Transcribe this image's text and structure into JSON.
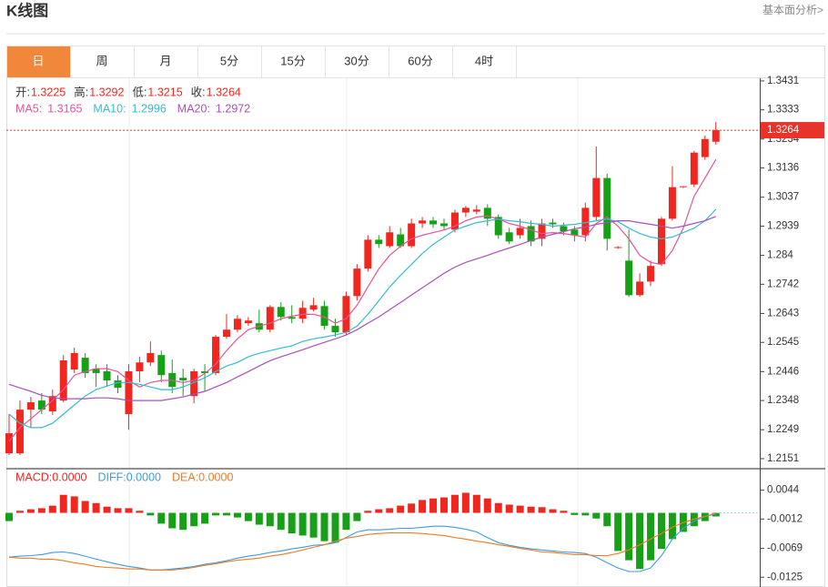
{
  "header": {
    "title": "K线图",
    "link": "基本面分析>"
  },
  "tabs": {
    "items": [
      "日",
      "周",
      "月",
      "5分",
      "15分",
      "30分",
      "60分",
      "4时"
    ],
    "active": 0
  },
  "chart_data": [
    {
      "type": "candlestick",
      "labels": {
        "open": "开:",
        "high": "高:",
        "low": "低:",
        "close": "收:"
      },
      "up_color": "#f0261f",
      "down_color": "#16a016",
      "open": [
        1.2169,
        1.2169,
        1.2317,
        1.2348,
        1.2311,
        1.2348,
        1.2453,
        1.2493,
        1.2456,
        1.2447,
        1.2416,
        1.2302,
        1.2447,
        1.2477,
        1.2502,
        1.2441,
        1.2425,
        1.2363,
        1.2447,
        1.2441,
        1.2564,
        1.2588,
        1.261,
        1.261,
        1.2588,
        1.2665,
        1.2631,
        1.2625,
        1.2656,
        1.2668,
        1.2601,
        1.2579,
        1.2702,
        1.2795,
        1.2893,
        1.2871,
        1.2911,
        1.2871,
        1.2948,
        1.2958,
        1.2948,
        1.2927,
        1.2985,
        1.2988,
        1.3001,
        1.297,
        1.2918,
        1.2908,
        1.2939,
        1.2896,
        1.2951,
        1.2939,
        1.2927,
        1.2908,
        1.297,
        1.3102,
        1.2865,
        1.2822,
        1.2705,
        1.2751,
        1.281,
        1.2964,
        1.3071,
        1.308,
        1.3173,
        1.3225
      ],
      "high": [
        1.2302,
        1.2348,
        1.236,
        1.2373,
        1.2385,
        1.2502,
        1.2527,
        1.2509,
        1.2471,
        1.2471,
        1.2434,
        1.2471,
        1.2496,
        1.2548,
        1.2517,
        1.2487,
        1.2456,
        1.2456,
        1.2471,
        1.257,
        1.2641,
        1.2637,
        1.2631,
        1.2656,
        1.2671,
        1.2681,
        1.2671,
        1.2686,
        1.2696,
        1.2686,
        1.2625,
        1.2717,
        1.281,
        1.2908,
        1.2908,
        1.2939,
        1.2933,
        1.2964,
        1.297,
        1.297,
        1.2964,
        1.2995,
        1.3007,
        1.301,
        1.3013,
        1.2979,
        1.2933,
        1.2964,
        1.2958,
        1.2964,
        1.2964,
        1.2951,
        1.2939,
        1.3019,
        1.3209,
        1.3117,
        1.2871,
        1.2927,
        1.2779,
        1.2822,
        1.297,
        1.3142,
        1.3074,
        1.3194,
        1.3246,
        1.3292
      ],
      "low": [
        1.2163,
        1.2163,
        1.2255,
        1.2302,
        1.2299,
        1.2342,
        1.2441,
        1.2425,
        1.2394,
        1.2394,
        1.2373,
        1.2249,
        1.241,
        1.2465,
        1.241,
        1.2373,
        1.2363,
        1.2339,
        1.2379,
        1.2434,
        1.2557,
        1.2579,
        1.2601,
        1.2579,
        1.2579,
        1.2619,
        1.261,
        1.261,
        1.265,
        1.2588,
        1.2564,
        1.257,
        1.2687,
        1.2785,
        1.2865,
        1.2865,
        1.2865,
        1.2865,
        1.2933,
        1.2933,
        1.2927,
        1.2918,
        1.297,
        1.2979,
        1.2939,
        1.2896,
        1.2878,
        1.2896,
        1.2871,
        1.2871,
        1.2933,
        1.2908,
        1.2887,
        1.2887,
        1.2958,
        1.2856,
        1.2862,
        1.2699,
        1.2699,
        1.2736,
        1.2804,
        1.2958,
        1.3068,
        1.3071,
        1.3164,
        1.3215
      ],
      "close": [
        1.2237,
        1.2317,
        1.2342,
        1.2317,
        1.2363,
        1.2484,
        1.2509,
        1.2441,
        1.2441,
        1.2416,
        1.2391,
        1.2447,
        1.2477,
        1.2509,
        1.2434,
        1.2394,
        1.2416,
        1.2447,
        1.2441,
        1.2564,
        1.2588,
        1.2625,
        1.2619,
        1.2588,
        1.2665,
        1.2631,
        1.2625,
        1.2662,
        1.2671,
        1.2601,
        1.2579,
        1.2702,
        1.2795,
        1.2893,
        1.2878,
        1.2918,
        1.2871,
        1.2948,
        1.2958,
        1.2945,
        1.2939,
        1.2985,
        1.3001,
        1.2995,
        1.2964,
        1.2908,
        1.2887,
        1.2933,
        1.2887,
        1.2948,
        1.2945,
        1.2921,
        1.2908,
        1.3001,
        1.3102,
        1.2896,
        1.2868,
        1.2705,
        1.2751,
        1.2804,
        1.2964,
        1.3071,
        1.3074,
        1.3188,
        1.3234,
        1.3264
      ],
      "series": [
        {
          "name": "MA5:",
          "color": "#e2559a",
          "values": [
            1.221,
            1.2256,
            1.2286,
            1.2317,
            1.2348,
            1.2385,
            1.2434,
            1.2446,
            1.2456,
            1.2456,
            1.2446,
            1.2416,
            1.2394,
            1.2409,
            1.2416,
            1.2416,
            1.2409,
            1.2416,
            1.244,
            1.2471,
            1.2517,
            1.2557,
            1.2588,
            1.26,
            1.261,
            1.2625,
            1.2634,
            1.264,
            1.264,
            1.2631,
            1.261,
            1.2625,
            1.2671,
            1.2733,
            1.2794,
            1.284,
            1.2871,
            1.2896,
            1.2908,
            1.2917,
            1.2926,
            1.2939,
            1.2957,
            1.297,
            1.2973,
            1.2963,
            1.2948,
            1.2939,
            1.2926,
            1.2914,
            1.2917,
            1.2914,
            1.2908,
            1.2902,
            1.2948,
            1.297,
            1.2939,
            1.2896,
            1.284,
            1.2816,
            1.2809,
            1.2856,
            1.2932,
            1.304,
            1.3102,
            1.3165
          ]
        },
        {
          "name": "MA10:",
          "color": "#35bcd0",
          "values": [
            1.2302,
            1.2271,
            1.2256,
            1.2256,
            1.2271,
            1.2302,
            1.2333,
            1.2363,
            1.2385,
            1.2397,
            1.2409,
            1.2409,
            1.2403,
            1.2394,
            1.2385,
            1.2385,
            1.2394,
            1.2409,
            1.2425,
            1.2446,
            1.2465,
            1.2477,
            1.2496,
            1.2508,
            1.2517,
            1.2526,
            1.2533,
            1.2548,
            1.2557,
            1.2563,
            1.257,
            1.2579,
            1.26,
            1.264,
            1.2686,
            1.2733,
            1.2772,
            1.2809,
            1.2846,
            1.2877,
            1.2902,
            1.2926,
            1.2939,
            1.2951,
            1.2957,
            1.2963,
            1.2957,
            1.2954,
            1.2948,
            1.2945,
            1.2939,
            1.2942,
            1.2945,
            1.2951,
            1.2957,
            1.2963,
            1.2954,
            1.2932,
            1.2914,
            1.2902,
            1.2896,
            1.2902,
            1.2917,
            1.2932,
            1.2957,
            1.2996
          ]
        },
        {
          "name": "MA20:",
          "color": "#a950b8",
          "values": [
            1.2403,
            1.2391,
            1.2379,
            1.2366,
            1.2357,
            1.2354,
            1.2354,
            1.2354,
            1.2357,
            1.2357,
            1.2354,
            1.2348,
            1.2348,
            1.2348,
            1.2348,
            1.2354,
            1.236,
            1.237,
            1.2379,
            1.2394,
            1.2409,
            1.2428,
            1.2446,
            1.2465,
            1.2483,
            1.2496,
            1.2508,
            1.252,
            1.2533,
            1.2545,
            1.2557,
            1.257,
            1.2588,
            1.261,
            1.2631,
            1.2656,
            1.268,
            1.2705,
            1.273,
            1.2754,
            1.2779,
            1.28,
            1.2816,
            1.2828,
            1.284,
            1.2853,
            1.2865,
            1.2877,
            1.289,
            1.2902,
            1.2911,
            1.292,
            1.293,
            1.2936,
            1.2945,
            1.2951,
            1.2957,
            1.2957,
            1.2951,
            1.2945,
            1.2939,
            1.2932,
            1.2939,
            1.2948,
            1.2957,
            1.2972
          ]
        }
      ],
      "ylim": [
        1.2117,
        1.344
      ],
      "yticks": [
        1.2151,
        1.2249,
        1.2348,
        1.2446,
        1.2545,
        1.2643,
        1.2742,
        1.284,
        1.2939,
        1.3037,
        1.3136,
        1.3234,
        1.3333,
        1.3431
      ],
      "last_price_color": "#e8332b"
    },
    {
      "type": "macd",
      "histogram": {
        "legend": "MACD:0.0000",
        "up_color": "#f0261f",
        "down_color": "#16a016",
        "values": [
          -0.0016,
          0.0004,
          0.0007,
          0.0009,
          0.0014,
          0.0035,
          0.0032,
          0.0023,
          0.0019,
          0.0012,
          0.0009,
          0.0009,
          0.0004,
          -0.0005,
          -0.0021,
          -0.003,
          -0.0033,
          -0.0026,
          -0.0021,
          -0.0005,
          -0.0005,
          -0.0009,
          -0.0016,
          -0.0023,
          -0.0026,
          -0.0033,
          -0.004,
          -0.0044,
          -0.0048,
          -0.0055,
          -0.0058,
          -0.0033,
          -0.0016,
          0.0004,
          0.0007,
          0.0009,
          0.0014,
          0.0018,
          0.0025,
          0.0028,
          0.003,
          0.0035,
          0.0039,
          0.0035,
          0.0028,
          0.0019,
          0.0016,
          0.0014,
          0.0012,
          0.0011,
          0.0007,
          0.0004,
          -0.0004,
          -0.0005,
          -0.0011,
          -0.0026,
          -0.0074,
          -0.0092,
          -0.0109,
          -0.0092,
          -0.007,
          -0.0051,
          -0.0037,
          -0.0026,
          -0.0016,
          -0.0007
        ]
      },
      "series": [
        {
          "legend": "DIFF:0.0000",
          "color": "#3d9be0",
          "values": [
            -0.0086,
            -0.0084,
            -0.0083,
            -0.0081,
            -0.0077,
            -0.0076,
            -0.0079,
            -0.0084,
            -0.009,
            -0.0095,
            -0.01,
            -0.0104,
            -0.0107,
            -0.0111,
            -0.0111,
            -0.0109,
            -0.0107,
            -0.0104,
            -0.01,
            -0.0097,
            -0.0093,
            -0.0088,
            -0.0084,
            -0.0081,
            -0.0077,
            -0.0074,
            -0.007,
            -0.0067,
            -0.0063,
            -0.0062,
            -0.0058,
            -0.0048,
            -0.0037,
            -0.0033,
            -0.0033,
            -0.0032,
            -0.003,
            -0.003,
            -0.0028,
            -0.0026,
            -0.0026,
            -0.0028,
            -0.0032,
            -0.0037,
            -0.0048,
            -0.0058,
            -0.0063,
            -0.0067,
            -0.007,
            -0.0072,
            -0.0074,
            -0.0076,
            -0.0077,
            -0.0079,
            -0.0086,
            -0.0097,
            -0.0107,
            -0.0114,
            -0.0114,
            -0.0107,
            -0.0083,
            -0.0051,
            -0.003,
            -0.0016,
            -0.0007,
            -0.0002
          ]
        },
        {
          "legend": "DEA:0.0000",
          "color": "#ef7a26",
          "values": [
            -0.0086,
            -0.0088,
            -0.0088,
            -0.009,
            -0.009,
            -0.0093,
            -0.0097,
            -0.01,
            -0.0104,
            -0.0106,
            -0.0107,
            -0.0109,
            -0.0109,
            -0.0111,
            -0.0111,
            -0.0111,
            -0.0109,
            -0.0106,
            -0.0102,
            -0.0099,
            -0.0095,
            -0.0092,
            -0.009,
            -0.0088,
            -0.0084,
            -0.0081,
            -0.0077,
            -0.0072,
            -0.0067,
            -0.0062,
            -0.0055,
            -0.0049,
            -0.0046,
            -0.0042,
            -0.004,
            -0.0039,
            -0.0039,
            -0.0039,
            -0.004,
            -0.0042,
            -0.0044,
            -0.0048,
            -0.0051,
            -0.0055,
            -0.0058,
            -0.0062,
            -0.0065,
            -0.0069,
            -0.0072,
            -0.0076,
            -0.0077,
            -0.0079,
            -0.0081,
            -0.0081,
            -0.0083,
            -0.0083,
            -0.0079,
            -0.0072,
            -0.0062,
            -0.0051,
            -0.004,
            -0.0028,
            -0.0019,
            -0.0012,
            -0.0007,
            0
          ]
        }
      ],
      "ylim": [
        -0.0144,
        0.0084
      ],
      "yticks": [
        -0.0125,
        -0.0069,
        -0.0012,
        0.0044
      ]
    }
  ]
}
